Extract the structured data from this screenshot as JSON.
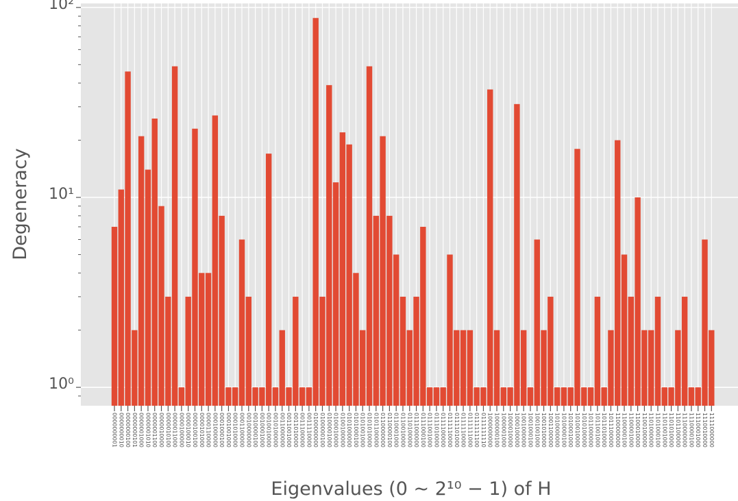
{
  "chart_data": {
    "type": "bar",
    "xlabel": "Eigenvalues (0 ∼ 2¹⁰ − 1) of H",
    "ylabel": "Degeneracy",
    "color": "#E24A33",
    "log_y": true,
    "grid": true,
    "categories": [
      "0000000001",
      "0000000010",
      "0000000100",
      "0000000101",
      "0000001000",
      "0000001010",
      "0000001100",
      "0000010000",
      "0000010100",
      "0000011000",
      "0000100000",
      "0000100010",
      "0000100100",
      "0000101000",
      "0000110000",
      "0001000000",
      "0001000100",
      "0001001000",
      "0001010000",
      "0001100000",
      "0010000000",
      "0010000100",
      "0010001000",
      "0010010000",
      "0010100000",
      "0011000000",
      "0011001000",
      "0011010000",
      "0011100000",
      "0011110000",
      "0100000000",
      "0100000100",
      "0100001000",
      "0100010000",
      "0100100000",
      "0101000000",
      "0101000100",
      "0101001000",
      "0101010000",
      "0101100000",
      "0110000000",
      "0110000100",
      "0110001000",
      "0110010000",
      "0110100000",
      "0111000000",
      "0111000100",
      "0111001000",
      "0111010000",
      "0111100000",
      "0111110000",
      "0111101000",
      "0111110000",
      "0111111000",
      "0111111100",
      "0111111110",
      "1000000000",
      "1000000100",
      "1000001000",
      "1000010000",
      "1000100000",
      "1001000000",
      "1001000100",
      "1001001000",
      "1001010000",
      "1001100000",
      "1010000000",
      "1010000100",
      "1010001000",
      "1010010000",
      "1010100000",
      "1011000000",
      "1011001000",
      "1011010000",
      "1011100000",
      "1100000000",
      "1100000100",
      "1100001000",
      "1100010000",
      "1100100000",
      "1101000000",
      "1101000100",
      "1101001000",
      "1101010000",
      "1101100000",
      "1110000000",
      "1110000100",
      "1110001000",
      "1110010000",
      "1111000000"
    ],
    "values": [
      7,
      11,
      46,
      2,
      21,
      14,
      26,
      9,
      3,
      49,
      1,
      3,
      23,
      4,
      4,
      27,
      8,
      1,
      1,
      6,
      3,
      1,
      1,
      17,
      1,
      2,
      1,
      3,
      1,
      1,
      88,
      3,
      39,
      12,
      22,
      19,
      4,
      2,
      49,
      8,
      21,
      8,
      5,
      3,
      2,
      3,
      7,
      1,
      1,
      1,
      5,
      2,
      2,
      2,
      1,
      1,
      37,
      2,
      1,
      1,
      31,
      2,
      1,
      6,
      2,
      3,
      1,
      1,
      1,
      18,
      1,
      1,
      3,
      1,
      2,
      20,
      5,
      3,
      10,
      2,
      2,
      3,
      1,
      1,
      2,
      3,
      1,
      1,
      6,
      2
    ],
    "ylim": [
      0.8,
      105
    ],
    "yticks": [
      {
        "value": 1,
        "label": "10⁰"
      },
      {
        "value": 10,
        "label": "10¹"
      },
      {
        "value": 100,
        "label": "10²"
      }
    ],
    "yminorticks": [
      0.9,
      2,
      3,
      4,
      5,
      6,
      7,
      8,
      9,
      20,
      30,
      40,
      50,
      60,
      70,
      80,
      90
    ]
  }
}
